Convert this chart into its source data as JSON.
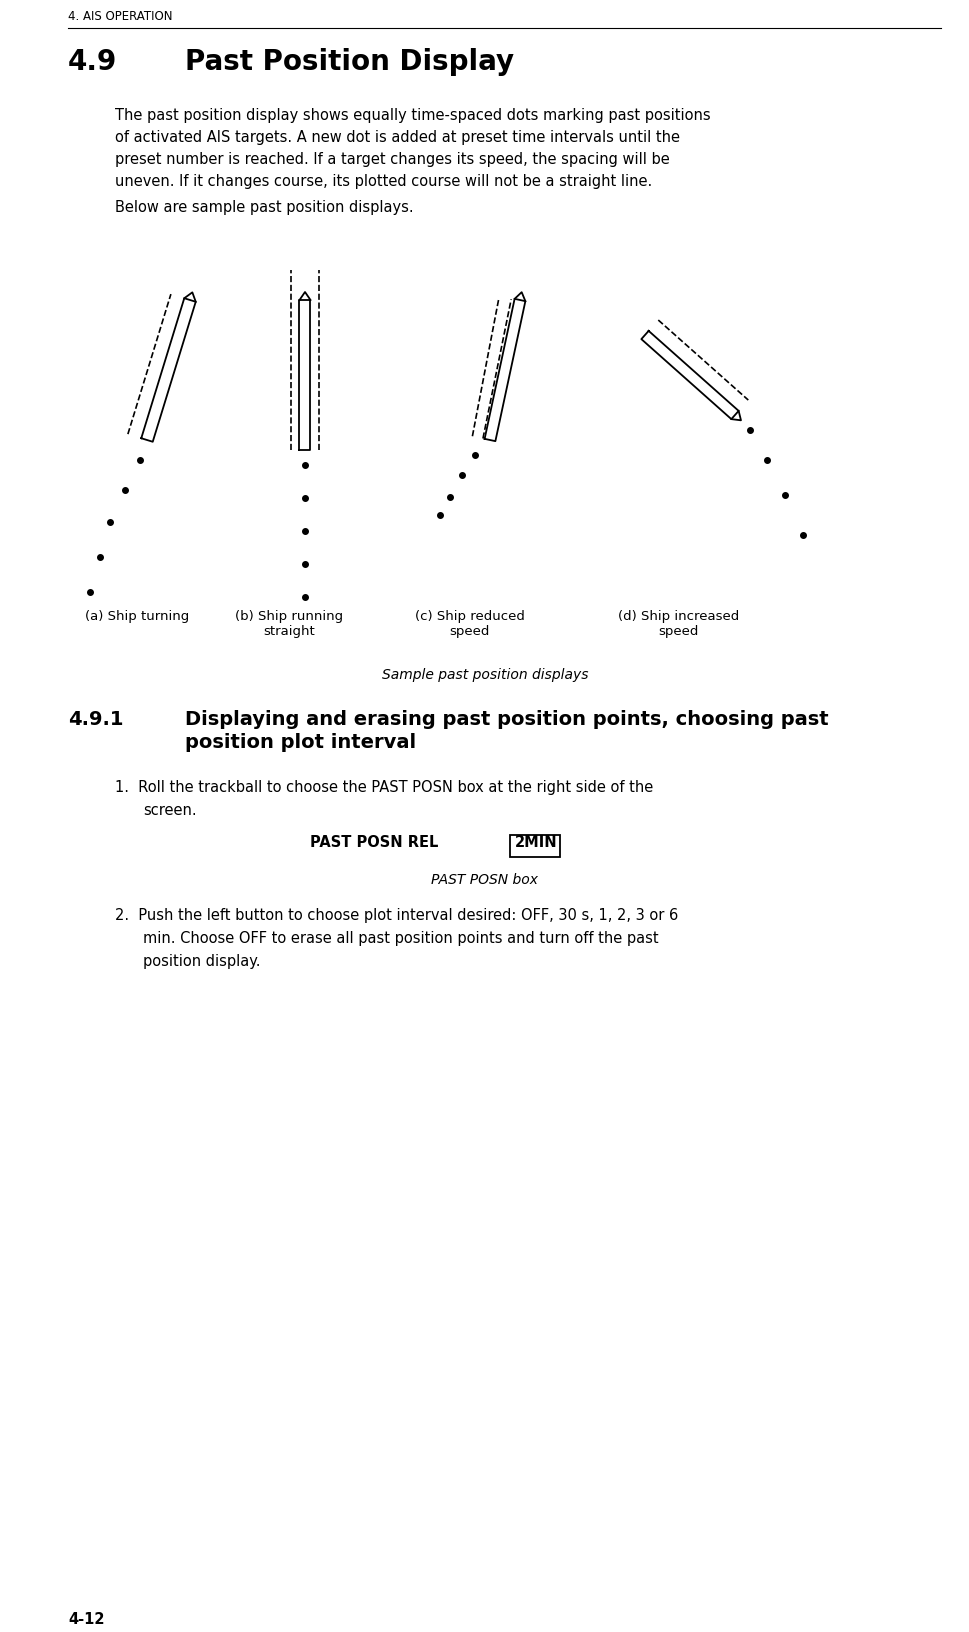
{
  "page_header": "4. AIS OPERATION",
  "section_number": "4.9",
  "section_title": "Past Position Display",
  "body_line1": "The past position display shows equally time-spaced dots marking past positions",
  "body_line2": "of activated AIS targets. A new dot is added at preset time intervals until the",
  "body_line3": "preset number is reached. If a target changes its speed, the spacing will be",
  "body_line4": "uneven. If it changes course, its plotted course will not be a straight line.",
  "below_text": "Below are sample past position displays.",
  "caption_a": "(a) Ship turning",
  "caption_b": "(b) Ship running\nstraight",
  "caption_c": "(c) Ship reduced\nspeed",
  "caption_d": "(d) Ship increased\nspeed",
  "figure_caption": "Sample past position displays",
  "subsection_number": "4.9.1",
  "subsection_title_line1": "Displaying and erasing past position points, choosing past",
  "subsection_title_line2": "position plot interval",
  "step1_line1": "Roll the trackball to choose the PAST POSN box at the right side of the",
  "step1_line2": "screen.",
  "past_posn_label": "PAST POSN REL",
  "past_posn_box": "2MIN",
  "past_posn_caption": "PAST POSN box",
  "step2_line1": "Push the left button to choose plot interval desired: OFF, 30 s, 1, 2, 3 or 6",
  "step2_line2": "min. Choose OFF to erase all past position points and turn off the past",
  "step2_line3": "position display.",
  "page_number": "4-12",
  "bg_color": "#ffffff",
  "text_color": "#000000"
}
